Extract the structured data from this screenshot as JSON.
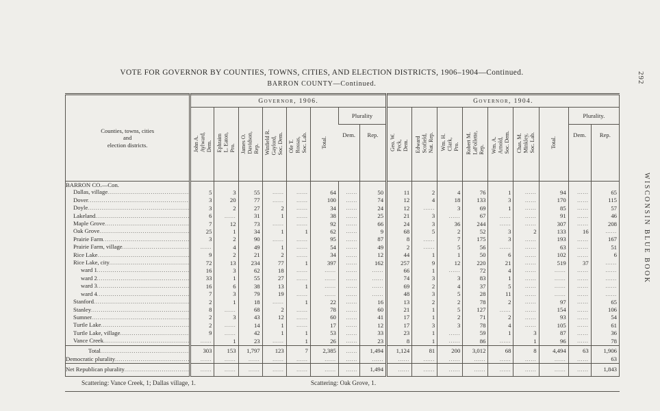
{
  "page": {
    "title": "VOTE FOR GOVERNOR BY COUNTIES, TOWNS, CITIES, AND ELECTION DISTRICTS, 1906–1904—Continued.",
    "subtitle": "BARRON COUNTY—Continued.",
    "page_number": "292",
    "side_text": "WISCONSIN BLUE BOOK",
    "scattering_left": "Scattering:   Vance Creek, 1;   Dallas village, 1.",
    "scattering_right": "Scattering:   Oak Grove, 1.",
    "colors": {
      "paper": "#efeeea",
      "ink": "#2b2a28",
      "rule": "#55524c"
    }
  },
  "table": {
    "corner_header": "Counties, towns, cities\nand\nelection districts.",
    "groups": [
      {
        "title": "Governor, 1906.",
        "candidates": [
          "John A.\nAylward,\nDem.",
          "Ephraim\nL. Eaton,\nPro.",
          "James O.\nDavidson,\nRep.",
          "Winfield R.\nGaylord,\nSoc. Dem.",
          "Ole T.\nRossas,\nSoc. Lab."
        ],
        "total_label": "Total.",
        "plurality": "Plurality",
        "dem": "Dem.",
        "rep": "Rep."
      },
      {
        "title": "Governor, 1904.",
        "candidates": [
          "Geo. W.\nPeck,\nDem.",
          "Edward\nScofield,\nNat. Rep.",
          "Wm. H.\nClark,\nPro.",
          "Robert M.\nLaFollette,\nRep.",
          "Wm. A.\nArnold,\nSoc. Dem.",
          "Chas. M.\nMinkley,\nSoc. Lab."
        ],
        "total_label": "Total.",
        "plurality": "Plurality.",
        "dem": "Dem.",
        "rep": "Rep."
      }
    ],
    "rows": [
      {
        "label": "BARRON CO.—Con.",
        "indent": 0,
        "cls": "section",
        "values": []
      },
      {
        "label": "Dallas, village",
        "indent": 1,
        "values": [
          "5",
          "3",
          "55",
          "",
          "",
          "64",
          "",
          "50",
          "11",
          "2",
          "4",
          "76",
          "1",
          "",
          "94",
          "",
          "65"
        ]
      },
      {
        "label": "Dover",
        "indent": 1,
        "values": [
          "3",
          "20",
          "77",
          "",
          "",
          "100",
          "",
          "74",
          "12",
          "4",
          "18",
          "133",
          "3",
          "",
          "170",
          "",
          "115"
        ]
      },
      {
        "label": "Doyle",
        "indent": 1,
        "values": [
          "3",
          "2",
          "27",
          "2",
          "",
          "34",
          "",
          "24",
          "12",
          "",
          "3",
          "69",
          "1",
          "",
          "85",
          "",
          "57"
        ]
      },
      {
        "label": "Lakeland",
        "indent": 1,
        "values": [
          "6",
          "",
          "31",
          "1",
          "",
          "38",
          "",
          "25",
          "21",
          "3",
          "",
          "67",
          "",
          "",
          "91",
          "",
          "46"
        ]
      },
      {
        "label": "Maple Grove",
        "indent": 1,
        "values": [
          "7",
          "12",
          "73",
          "",
          "",
          "92",
          "",
          "66",
          "24",
          "3",
          "36",
          "244",
          "",
          "",
          "307",
          "",
          "208"
        ]
      },
      {
        "label": "Oak Grove",
        "indent": 1,
        "values": [
          "25",
          "1",
          "34",
          "1",
          "1",
          "62",
          "",
          "9",
          "68",
          "5",
          "2",
          "52",
          "3",
          "2",
          "133",
          "16",
          ""
        ]
      },
      {
        "label": "Prairie Farm",
        "indent": 1,
        "values": [
          "3",
          "2",
          "90",
          "",
          "",
          "95",
          "",
          "87",
          "8",
          "",
          "7",
          "175",
          "3",
          "",
          "193",
          "",
          "167"
        ]
      },
      {
        "label": "Prairie Farm, village",
        "indent": 1,
        "values": [
          "",
          "4",
          "49",
          "1",
          "",
          "54",
          "",
          "49",
          "2",
          "",
          "5",
          "56",
          "",
          "",
          "63",
          "",
          "51"
        ]
      },
      {
        "label": "Rice Lake",
        "indent": 1,
        "values": [
          "9",
          "2",
          "21",
          "2",
          "",
          "34",
          "",
          "12",
          "44",
          "1",
          "1",
          "50",
          "6",
          "",
          "102",
          "",
          "6"
        ]
      },
      {
        "label": "Rice Lake, city",
        "indent": 1,
        "values": [
          "72",
          "13",
          "234",
          "77",
          "1",
          "397",
          "",
          "162",
          "257",
          "9",
          "12",
          "220",
          "21",
          "",
          "519",
          "37",
          ""
        ]
      },
      {
        "label": "ward 1",
        "indent": 2,
        "values": [
          "16",
          "3",
          "62",
          "18",
          "",
          "",
          "",
          "",
          "66",
          "1",
          "",
          "72",
          "4",
          "",
          "",
          "",
          ""
        ]
      },
      {
        "label": "ward 2",
        "indent": 2,
        "values": [
          "33",
          "1",
          "55",
          "27",
          "",
          "",
          "",
          "",
          "74",
          "3",
          "3",
          "83",
          "1",
          "",
          "",
          "",
          ""
        ]
      },
      {
        "label": "ward 3",
        "indent": 2,
        "values": [
          "16",
          "6",
          "38",
          "13",
          "1",
          "",
          "",
          "",
          "69",
          "2",
          "4",
          "37",
          "5",
          "",
          "",
          "",
          ""
        ]
      },
      {
        "label": "ward 4",
        "indent": 2,
        "values": [
          "7",
          "3",
          "79",
          "19",
          "",
          "",
          "",
          "",
          "48",
          "3",
          "5",
          "28",
          "11",
          "",
          "",
          "",
          ""
        ]
      },
      {
        "label": "Stanford",
        "indent": 1,
        "values": [
          "2",
          "1",
          "18",
          "",
          "1",
          "22",
          "",
          "16",
          "13",
          "2",
          "2",
          "78",
          "2",
          "",
          "97",
          "",
          "65"
        ]
      },
      {
        "label": "Stanley",
        "indent": 1,
        "values": [
          "8",
          "",
          "68",
          "2",
          "",
          "78",
          "",
          "60",
          "21",
          "1",
          "5",
          "127",
          "",
          "",
          "154",
          "",
          "106"
        ]
      },
      {
        "label": "Sumner",
        "indent": 1,
        "values": [
          "2",
          "3",
          "43",
          "12",
          "",
          "60",
          "",
          "41",
          "17",
          "1",
          "2",
          "71",
          "2",
          "",
          "93",
          "",
          "54"
        ]
      },
      {
        "label": "Turtle Lake",
        "indent": 1,
        "values": [
          "2",
          "",
          "14",
          "1",
          "",
          "17",
          "",
          "12",
          "17",
          "3",
          "3",
          "78",
          "4",
          "",
          "105",
          "",
          "61"
        ]
      },
      {
        "label": "Turtle Lake, village",
        "indent": 1,
        "values": [
          "9",
          "",
          "42",
          "1",
          "1",
          "53",
          "",
          "33",
          "23",
          "1",
          "",
          "59",
          "1",
          "3",
          "87",
          "",
          "36"
        ]
      },
      {
        "label": "Vance Creek",
        "indent": 1,
        "values": [
          "",
          "1",
          "23",
          "",
          "1",
          "26",
          "",
          "23",
          "8",
          "1",
          "",
          "86",
          "",
          "1",
          "96",
          "",
          "78"
        ]
      },
      {
        "label": "Total",
        "indent": 3,
        "cls": "total",
        "values": [
          "303",
          "153",
          "1,797",
          "123",
          "7",
          "2,385",
          "",
          "1,494",
          "1,124",
          "81",
          "200",
          "3,012",
          "68",
          "8",
          "4,494",
          "63",
          "1,906"
        ]
      },
      {
        "label": "Democratic plurality",
        "indent": 0,
        "cls": "demplur",
        "values": [
          "",
          "",
          "",
          "",
          "",
          "",
          "",
          "",
          "",
          "",
          "",
          "",
          "",
          "",
          "",
          "",
          "63"
        ]
      },
      {
        "label": "Net Republican plurality",
        "indent": 0,
        "cls": "net",
        "values": [
          "",
          "",
          "",
          "",
          "",
          "",
          "",
          "1,494",
          "",
          "",
          "",
          "",
          "",
          "",
          "",
          "",
          "1,843"
        ]
      }
    ]
  }
}
